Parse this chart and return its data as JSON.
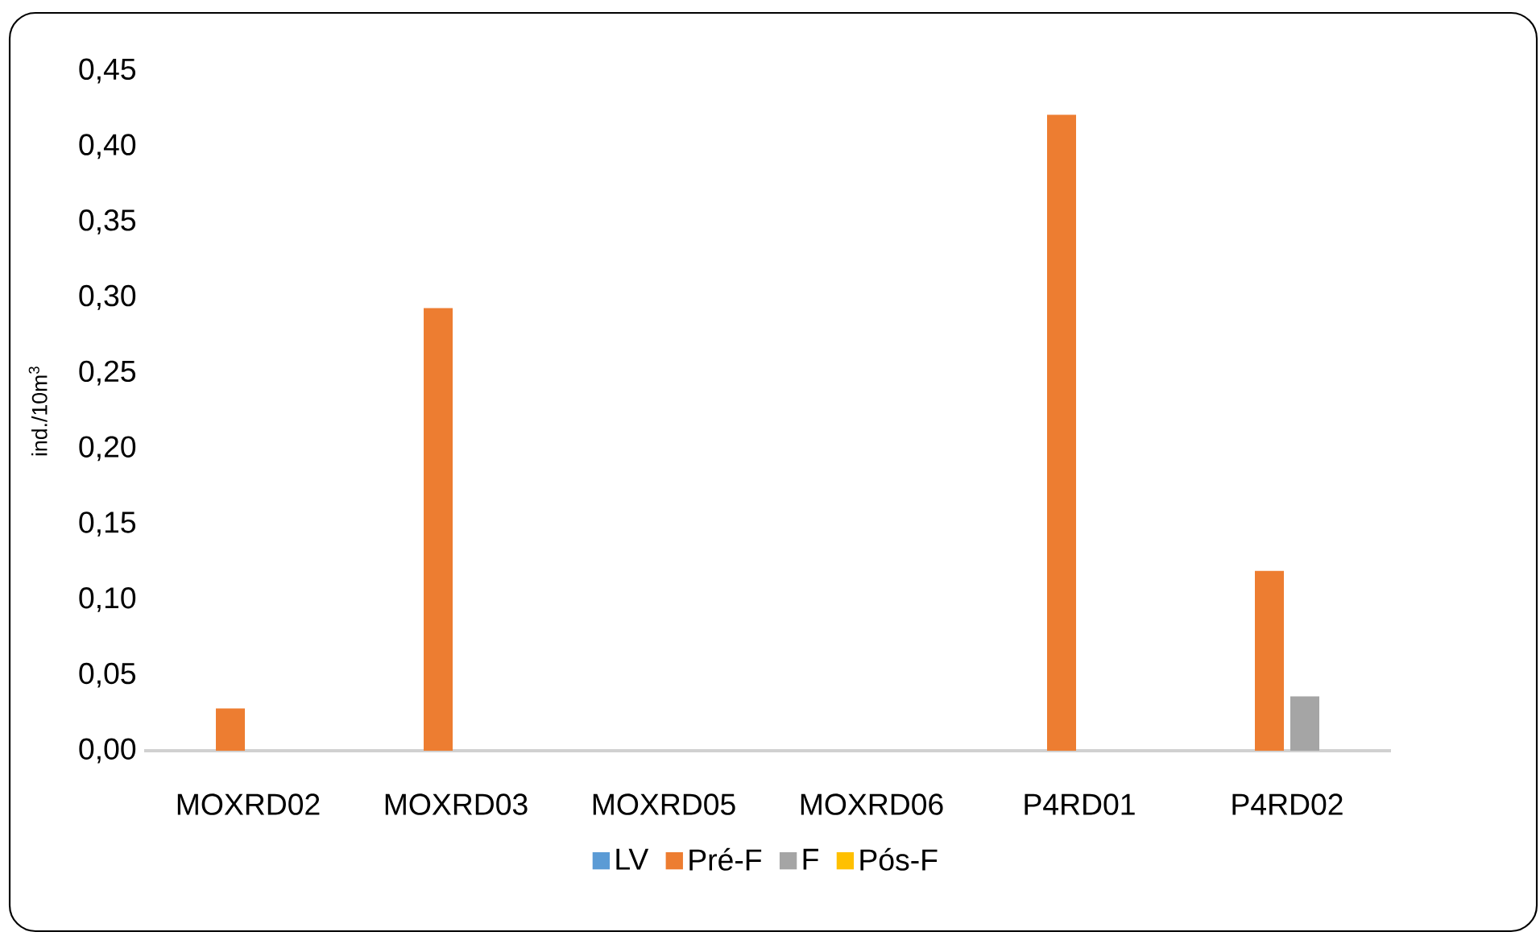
{
  "chart_data": {
    "type": "bar",
    "ylabel": "ind./10m$^{3}$",
    "categories": [
      "MOXRD02",
      "MOXRD03",
      "MOXRD05",
      "MOXRD06",
      "P4RD01",
      "P4RD02"
    ],
    "series": [
      {
        "name": "LV",
        "color": "#5b9bd5",
        "values": [
          0,
          0,
          0,
          0,
          0,
          0
        ]
      },
      {
        "name": "Pré-F",
        "color": "#ed7d31",
        "values": [
          0.028,
          0.293,
          0,
          0,
          0.421,
          0.119
        ]
      },
      {
        "name": "F",
        "color": "#a5a5a5",
        "values": [
          0,
          0,
          0,
          0,
          0,
          0.036
        ]
      },
      {
        "name": "Pós-F",
        "color": "#ffc000",
        "values": [
          0,
          0,
          0,
          0,
          0,
          0
        ]
      }
    ],
    "ylim": [
      0,
      0.45
    ],
    "yticks": [
      {
        "value": 0,
        "label": "0,00"
      },
      {
        "value": 0.05,
        "label": "0,05"
      },
      {
        "value": 0.1,
        "label": "0,10"
      },
      {
        "value": 0.15,
        "label": "0,15"
      },
      {
        "value": 0.2,
        "label": "0,20"
      },
      {
        "value": 0.25,
        "label": "0,25"
      },
      {
        "value": 0.3,
        "label": "0,30"
      },
      {
        "value": 0.35,
        "label": "0,35"
      },
      {
        "value": 0.4,
        "label": "0,40"
      },
      {
        "value": 0.45,
        "label": "0,45"
      }
    ],
    "legend": "bottom"
  }
}
